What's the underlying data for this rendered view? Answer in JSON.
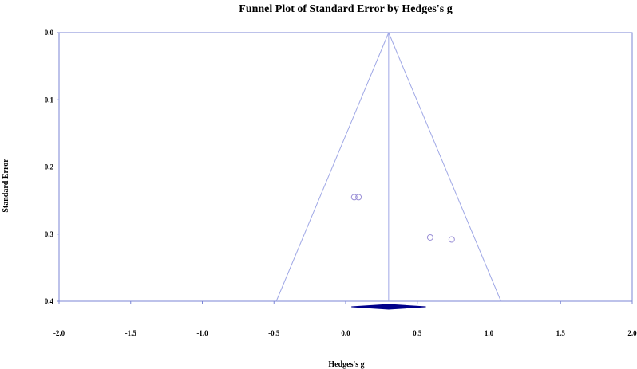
{
  "chart_data": {
    "type": "scatter",
    "title": "Funnel Plot of Standard Error by Hedges's g",
    "xlabel": "Hedges's g",
    "ylabel": "Standard Error",
    "xlim": [
      -2.0,
      2.0
    ],
    "ylim": [
      0.0,
      0.4
    ],
    "y_inverted": true,
    "x_ticks": [
      "-2.0",
      "-1.5",
      "-1.0",
      "-0.5",
      "0.0",
      "0.5",
      "1.0",
      "1.5",
      "2.0"
    ],
    "y_ticks": [
      "0.0",
      "0.1",
      "0.2",
      "0.3",
      "0.4"
    ],
    "grid": false,
    "points": [
      {
        "x": 0.06,
        "y": 0.245
      },
      {
        "x": 0.09,
        "y": 0.245
      },
      {
        "x": 0.59,
        "y": 0.305
      },
      {
        "x": 0.74,
        "y": 0.308
      }
    ],
    "summary_effect": 0.3,
    "funnel_se_max": 0.4,
    "summary_diamond": {
      "lower": 0.04,
      "point": 0.3,
      "upper": 0.56
    },
    "colors": {
      "points": "#9a8fd6",
      "funnel": "#a0a8e6",
      "diamond": "#00008b",
      "axis": "#7b85d6"
    }
  }
}
